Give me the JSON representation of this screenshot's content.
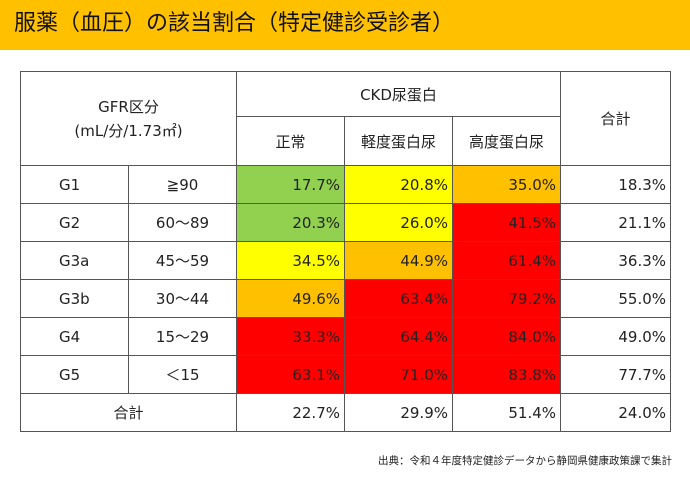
{
  "title": "服薬（血圧）の該当割合（特定健診受診者）",
  "colors": {
    "banner": "#ffc000",
    "green": "#92d050",
    "yellow": "#ffff00",
    "orange": "#ffc000",
    "red": "#ff0000"
  },
  "table": {
    "gfr_header_line1": "GFR区分",
    "gfr_header_line2": "(mL/分/1.73㎡)",
    "ckd_header": "CKD尿蛋白",
    "total_header": "合計",
    "proteinuria_headers": [
      "正常",
      "軽度蛋白尿",
      "高度蛋白尿"
    ],
    "rows": [
      {
        "grade": "G1",
        "range": "≧90",
        "values": [
          "17.7%",
          "20.8%",
          "35.0%"
        ],
        "colors": [
          "green",
          "yellow",
          "orange"
        ],
        "total": "18.3%"
      },
      {
        "grade": "G2",
        "range": "60～89",
        "values": [
          "20.3%",
          "26.0%",
          "41.5%"
        ],
        "colors": [
          "green",
          "yellow",
          "red"
        ],
        "total": "21.1%"
      },
      {
        "grade": "G3a",
        "range": "45～59",
        "values": [
          "34.5%",
          "44.9%",
          "61.4%"
        ],
        "colors": [
          "yellow",
          "orange",
          "red"
        ],
        "total": "36.3%"
      },
      {
        "grade": "G3b",
        "range": "30～44",
        "values": [
          "49.6%",
          "63.4%",
          "79.2%"
        ],
        "colors": [
          "orange",
          "red",
          "red"
        ],
        "total": "55.0%"
      },
      {
        "grade": "G4",
        "range": "15～29",
        "values": [
          "33.3%",
          "64.4%",
          "84.0%"
        ],
        "colors": [
          "red",
          "red",
          "red"
        ],
        "total": "49.0%"
      },
      {
        "grade": "G5",
        "range": "＜15",
        "values": [
          "63.1%",
          "71.0%",
          "83.8%"
        ],
        "colors": [
          "red",
          "red",
          "red"
        ],
        "total": "77.7%"
      }
    ],
    "total_row": {
      "label": "合計",
      "values": [
        "22.7%",
        "29.9%",
        "51.4%"
      ],
      "total": "24.0%"
    }
  },
  "source": "出典：令和４年度特定健診データから静岡県健康政策課で集計"
}
